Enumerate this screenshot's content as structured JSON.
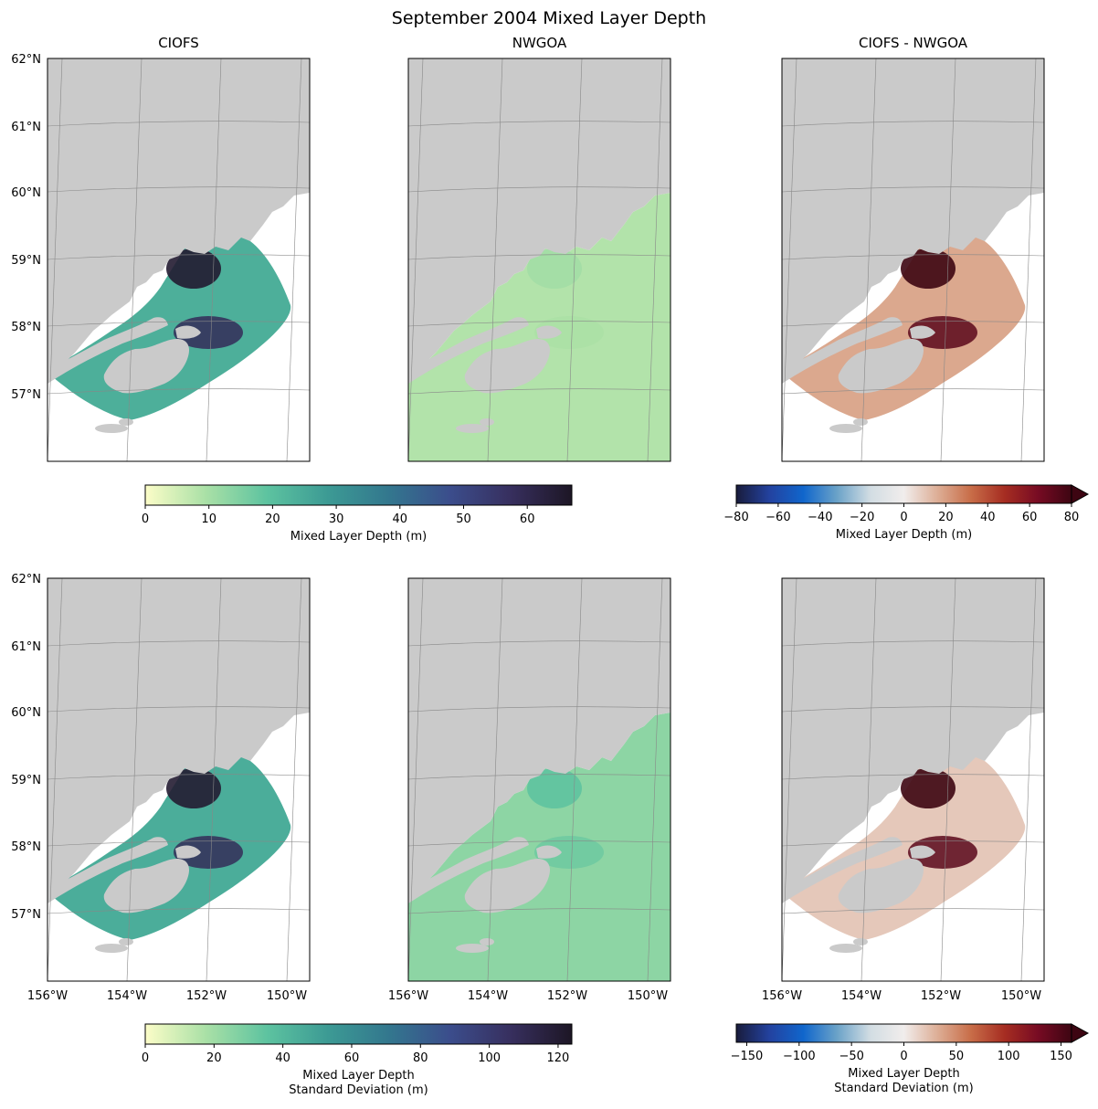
{
  "figure": {
    "title": "September 2004 Mixed Layer Depth"
  },
  "colors": {
    "land": "#cacaca",
    "frame": "#000000",
    "grid": "#888888",
    "deep_cmap": [
      "#fcfdc8",
      "#a9e0a6",
      "#5dc3a0",
      "#3c9a94",
      "#33778e",
      "#3b4d8c",
      "#372f5e",
      "#1d1625"
    ],
    "balance_cmap": [
      "#191c3c",
      "#2342a0",
      "#1066cc",
      "#6aa2c8",
      "#d2dde3",
      "#f1edec",
      "#ddae96",
      "#c86d48",
      "#a62d22",
      "#770b23",
      "#3d0512"
    ]
  },
  "chart_data": [
    {
      "type": "heatmap",
      "name": "mean-ciofs",
      "title": "CIOFS",
      "ylabel_ticks": [
        "62°N",
        "61°N",
        "60°N",
        "59°N",
        "58°N",
        "57°N"
      ],
      "xlabel_ticks": [],
      "field": "Mixed Layer Depth (m)",
      "value_range": [
        0,
        67
      ],
      "dominant_range": [
        10,
        65
      ]
    },
    {
      "type": "heatmap",
      "name": "mean-nwgoa",
      "title": "NWGOA",
      "ylabel_ticks": [],
      "xlabel_ticks": [],
      "field": "Mixed Layer Depth (m)",
      "value_range": [
        0,
        67
      ],
      "dominant_range": [
        5,
        15
      ]
    },
    {
      "type": "heatmap",
      "name": "mean-diff",
      "title": "CIOFS - NWGOA",
      "ylabel_ticks": [],
      "xlabel_ticks": [],
      "field": "Mixed Layer Depth (m)",
      "value_range": [
        -80,
        80
      ],
      "dominant_range": [
        0,
        80
      ]
    },
    {
      "type": "heatmap",
      "name": "std-ciofs",
      "title": "",
      "ylabel_ticks": [
        "62°N",
        "61°N",
        "60°N",
        "59°N",
        "58°N",
        "57°N"
      ],
      "xlabel_ticks": [
        "156°W",
        "154°W",
        "152°W",
        "150°W"
      ],
      "field": "Mixed Layer Depth Standard Deviation (m)",
      "value_range": [
        0,
        124
      ],
      "dominant_range": [
        20,
        120
      ]
    },
    {
      "type": "heatmap",
      "name": "std-nwgoa",
      "title": "",
      "ylabel_ticks": [],
      "xlabel_ticks": [
        "156°W",
        "154°W",
        "152°W",
        "150°W"
      ],
      "field": "Mixed Layer Depth Standard Deviation (m)",
      "value_range": [
        0,
        124
      ],
      "dominant_range": [
        5,
        60
      ]
    },
    {
      "type": "heatmap",
      "name": "std-diff",
      "title": "",
      "ylabel_ticks": [],
      "xlabel_ticks": [
        "156°W",
        "154°W",
        "152°W",
        "150°W"
      ],
      "field": "Mixed Layer Depth Standard Deviation (m)",
      "value_range": [
        -150,
        150
      ],
      "dominant_range": [
        -20,
        150
      ]
    }
  ],
  "colorbars": [
    {
      "name": "cbar-mean-seq",
      "ticks": [
        "0",
        "10",
        "20",
        "30",
        "40",
        "50",
        "60"
      ],
      "tick_values": [
        0,
        10,
        20,
        30,
        40,
        50,
        60
      ],
      "range": [
        0,
        67
      ],
      "label": [
        "Mixed Layer Depth (m)"
      ],
      "extend": false
    },
    {
      "name": "cbar-mean-div",
      "ticks": [
        "−80",
        "−60",
        "−40",
        "−20",
        "0",
        "20",
        "40",
        "60",
        "80"
      ],
      "tick_values": [
        -80,
        -60,
        -40,
        -20,
        0,
        20,
        40,
        60,
        80
      ],
      "range": [
        -80,
        80
      ],
      "label": [
        "Mixed Layer Depth (m)"
      ],
      "extend": true
    },
    {
      "name": "cbar-std-seq",
      "ticks": [
        "0",
        "20",
        "40",
        "60",
        "80",
        "100",
        "120"
      ],
      "tick_values": [
        0,
        20,
        40,
        60,
        80,
        100,
        120
      ],
      "range": [
        0,
        124
      ],
      "label": [
        "Mixed Layer Depth",
        "Standard Deviation (m)"
      ],
      "extend": false
    },
    {
      "name": "cbar-std-div",
      "ticks": [
        "−150",
        "−100",
        "−50",
        "0",
        "50",
        "100",
        "150"
      ],
      "tick_values": [
        -150,
        -100,
        -50,
        0,
        50,
        100,
        150
      ],
      "range": [
        -160,
        160
      ],
      "label": [
        "Mixed Layer Depth",
        "Standard Deviation (m)"
      ],
      "extend": true
    }
  ]
}
